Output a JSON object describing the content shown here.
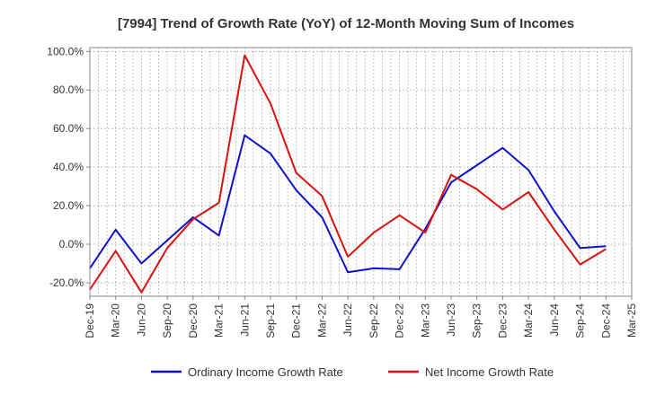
{
  "chart_data": {
    "type": "line",
    "title": "[7994]  Trend of Growth Rate (YoY) of 12-Month Moving Sum of Incomes",
    "x": [
      "Dec-19",
      "Mar-20",
      "Jun-20",
      "Sep-20",
      "Dec-20",
      "Mar-21",
      "Jun-21",
      "Sep-21",
      "Dec-21",
      "Mar-22",
      "Jun-22",
      "Sep-22",
      "Dec-22",
      "Mar-23",
      "Jun-23",
      "Sep-23",
      "Dec-23",
      "Mar-24",
      "Jun-24",
      "Sep-24",
      "Dec-24",
      "Mar-25"
    ],
    "ylim": [
      -27,
      102
    ],
    "yticks": [
      -20,
      0,
      20,
      40,
      60,
      80,
      100
    ],
    "ytick_labels": [
      "-20.0%",
      "0.0%",
      "20.0%",
      "40.0%",
      "60.0%",
      "80.0%",
      "100.0%"
    ],
    "grid": true,
    "legend_position": "bottom-center",
    "series": [
      {
        "name": "Ordinary Income Growth Rate",
        "color": "#1010cc",
        "values": [
          -12.5,
          7.5,
          -10.0,
          2.0,
          14.0,
          4.5,
          56.5,
          47.0,
          28.0,
          14.0,
          -14.5,
          -12.5,
          -13.0,
          8.0,
          32.0,
          41.0,
          50.0,
          38.5,
          17.0,
          -2.0,
          -1.0,
          null
        ]
      },
      {
        "name": "Net Income Growth Rate",
        "color": "#dd1010",
        "values": [
          -23.5,
          -3.5,
          -25.0,
          -2.0,
          13.0,
          21.5,
          98.0,
          73.0,
          37.0,
          25.0,
          -6.5,
          6.0,
          15.0,
          6.0,
          36.0,
          28.5,
          18.0,
          27.0,
          7.5,
          -10.5,
          -2.5,
          null
        ]
      }
    ]
  }
}
